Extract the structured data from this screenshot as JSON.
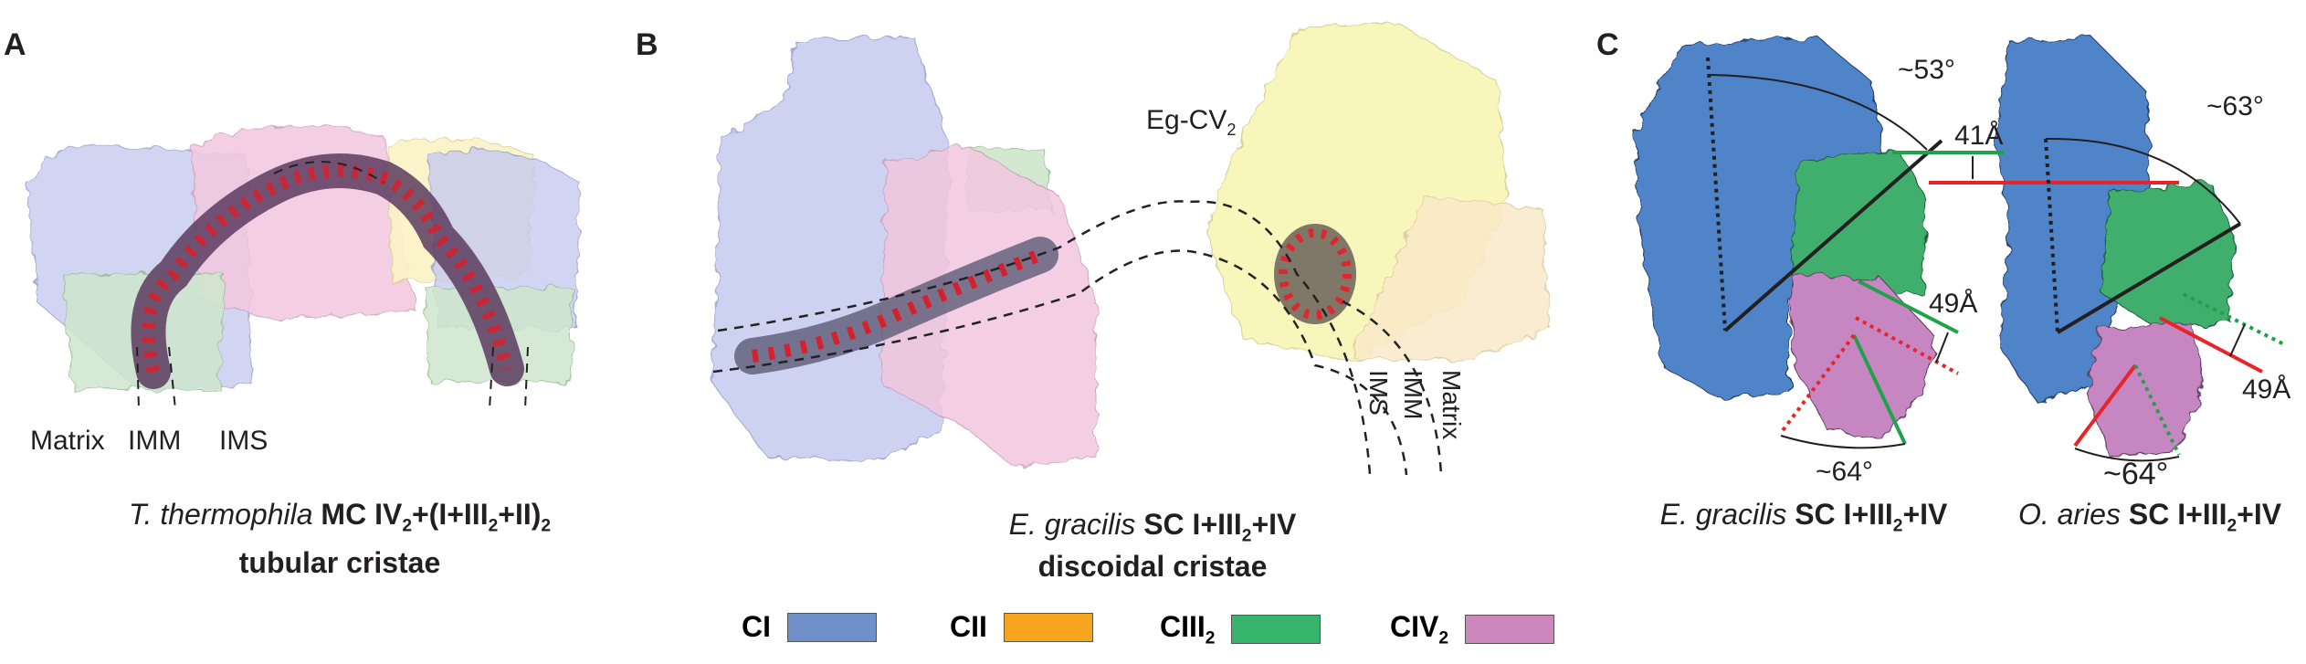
{
  "panels": {
    "a": {
      "letter": "A",
      "labels": [
        "Matrix",
        "IMM",
        "IMS"
      ],
      "title_species": "T. thermophila",
      "title_rest": "MC IV",
      "title_sub1": "2",
      "title_mid": "+(I+III",
      "title_sub2": "2",
      "title_mid2": "+II)",
      "title_sub3": "2",
      "subtitle": "tubular cristae"
    },
    "b": {
      "letter": "B",
      "cv_label": "Eg-CV",
      "cv_sub": "2",
      "membrane_labels": [
        "IMS",
        "IMM",
        "Matrix"
      ],
      "title_species": "E. gracilis",
      "title_rest": "SC I+III",
      "title_sub": "2",
      "title_end": "+IV",
      "subtitle": "discoidal cristae"
    },
    "c": {
      "letter": "C",
      "left": {
        "angle_top": "~53°",
        "distance_top": "41Å",
        "distance_mid": "49Å",
        "angle_bottom": "~64°",
        "title_species": "E. gracilis",
        "title_rest": "SC I+III",
        "title_sub": "2",
        "title_end": "+IV"
      },
      "right": {
        "angle_top": "~63°",
        "distance_mid": "49Å",
        "angle_bottom": "~64°",
        "title_species": "O. aries",
        "title_rest": "SC I+III",
        "title_sub": "2",
        "title_end": "+IV"
      }
    }
  },
  "legend": [
    {
      "label": "CI",
      "sub": "",
      "color": "#6f90c9"
    },
    {
      "label": "CII",
      "sub": "",
      "color": "#f6a51c"
    },
    {
      "label": "CIII",
      "sub": "2",
      "color": "#37b56d"
    },
    {
      "label": "CIV",
      "sub": "2",
      "color": "#cc88bd"
    }
  ],
  "colors": {
    "ci_surface": "#4f84c9",
    "ciii_surface": "#3fae6c",
    "civ_surface": "#c586c2",
    "cv_surface": "#f3f0a6",
    "line_red": "#e82428",
    "line_green": "#1fa24a"
  }
}
